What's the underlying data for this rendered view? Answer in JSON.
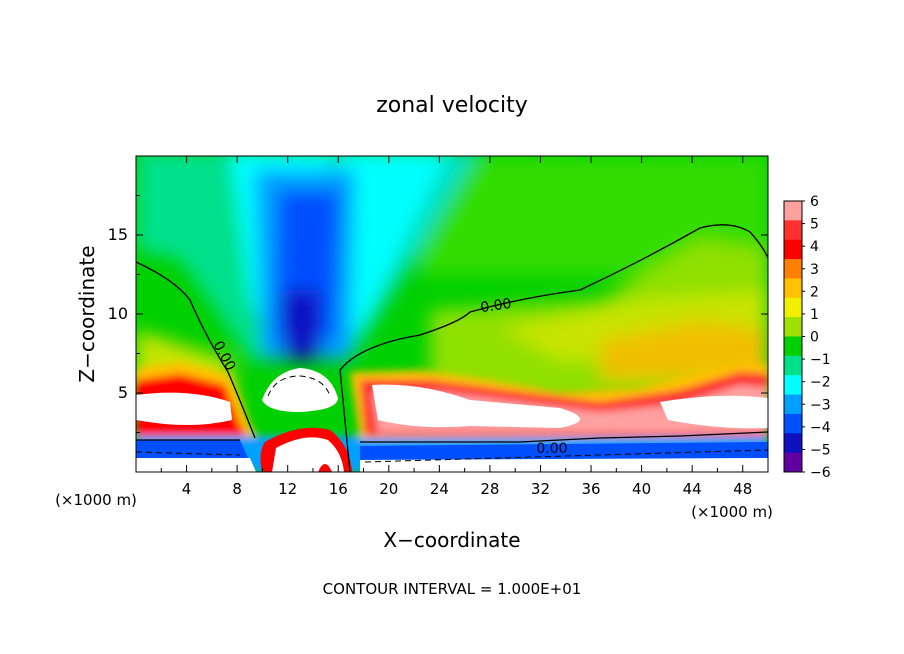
{
  "chart_data": {
    "type": "heatmap",
    "title": "zonal velocity",
    "xlabel": "X−coordinate",
    "ylabel": "Z−coordinate",
    "x_unit_label_left": "(×1000 m)",
    "x_unit_label_right": "(×1000 m)",
    "footer": "CONTOUR INTERVAL = 1.000E+01",
    "xlim": [
      0,
      50
    ],
    "ylim": [
      0,
      20
    ],
    "x_ticks": [
      "4",
      "8",
      "12",
      "16",
      "20",
      "24",
      "28",
      "32",
      "36",
      "40",
      "44",
      "48"
    ],
    "y_ticks": [
      "5",
      "10",
      "15"
    ],
    "colorbar": {
      "labels": [
        "6",
        "5",
        "4",
        "3",
        "2",
        "1",
        "0",
        "−1",
        "−2",
        "−3",
        "−4",
        "−5",
        "−6"
      ],
      "colors": [
        "#ffa0a0",
        "#ff3030",
        "#ff0000",
        "#ff8000",
        "#ffc000",
        "#f0f000",
        "#a0e000",
        "#00d000",
        "#00e08a",
        "#00ffff",
        "#00a0ff",
        "#0050ff",
        "#1010c0",
        "#6000a0"
      ]
    },
    "contour_labels": [
      "0.00",
      "0.00",
      "0.00"
    ],
    "colormap_value_range": [
      -6,
      6
    ]
  }
}
